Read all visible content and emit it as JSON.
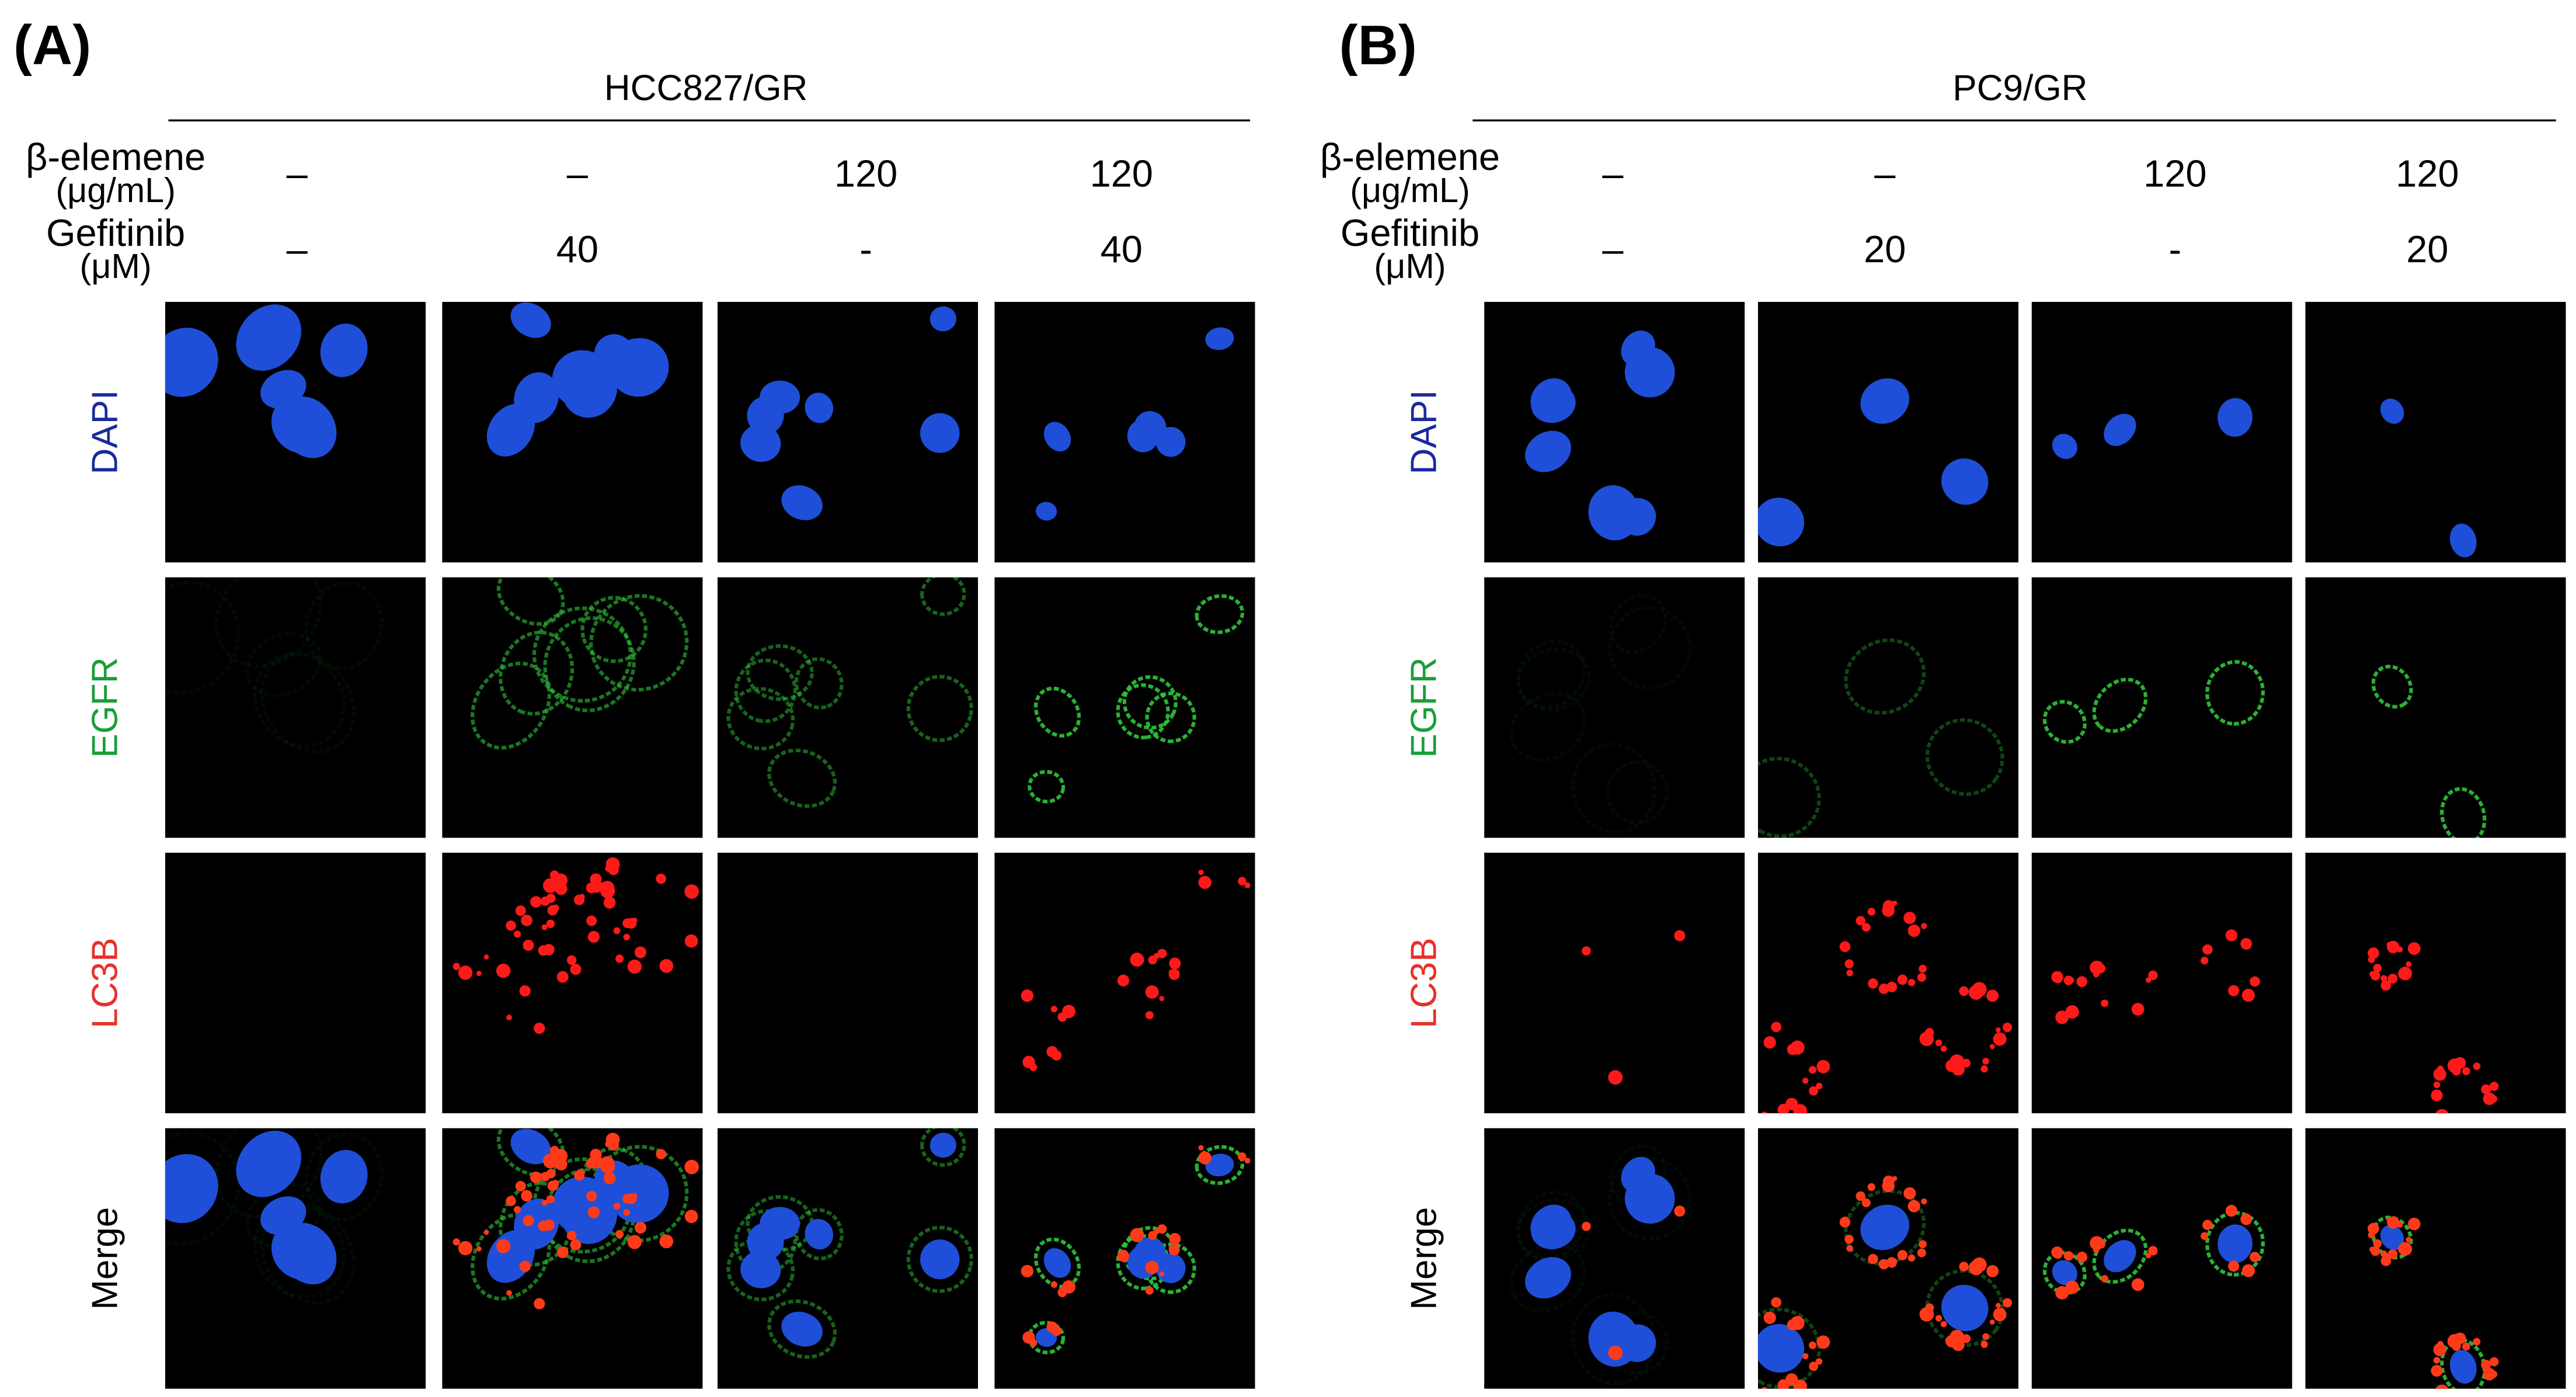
{
  "panels": [
    {
      "label": "(A)",
      "cell_line": "HCC827/GR",
      "treatments": [
        {
          "name": "β-elemene",
          "unit": "(μg/mL)",
          "values": [
            "–",
            "–",
            "120",
            "120"
          ]
        },
        {
          "name": "Gefitinib",
          "unit": "(μM)",
          "values": [
            "–",
            "40",
            "-",
            "40"
          ]
        }
      ],
      "channels": [
        "DAPI",
        "EGFR",
        "LC3B",
        "Merge"
      ]
    },
    {
      "label": "(B)",
      "cell_line": "PC9/GR",
      "treatments": [
        {
          "name": "β-elemene",
          "unit": "(μg/mL)",
          "values": [
            "–",
            "–",
            "120",
            "120"
          ]
        },
        {
          "name": "Gefitinib",
          "unit": "(μM)",
          "values": [
            "–",
            "20",
            "-",
            "20"
          ]
        }
      ],
      "channels": [
        "DAPI",
        "EGFR",
        "LC3B",
        "Merge"
      ]
    }
  ]
}
